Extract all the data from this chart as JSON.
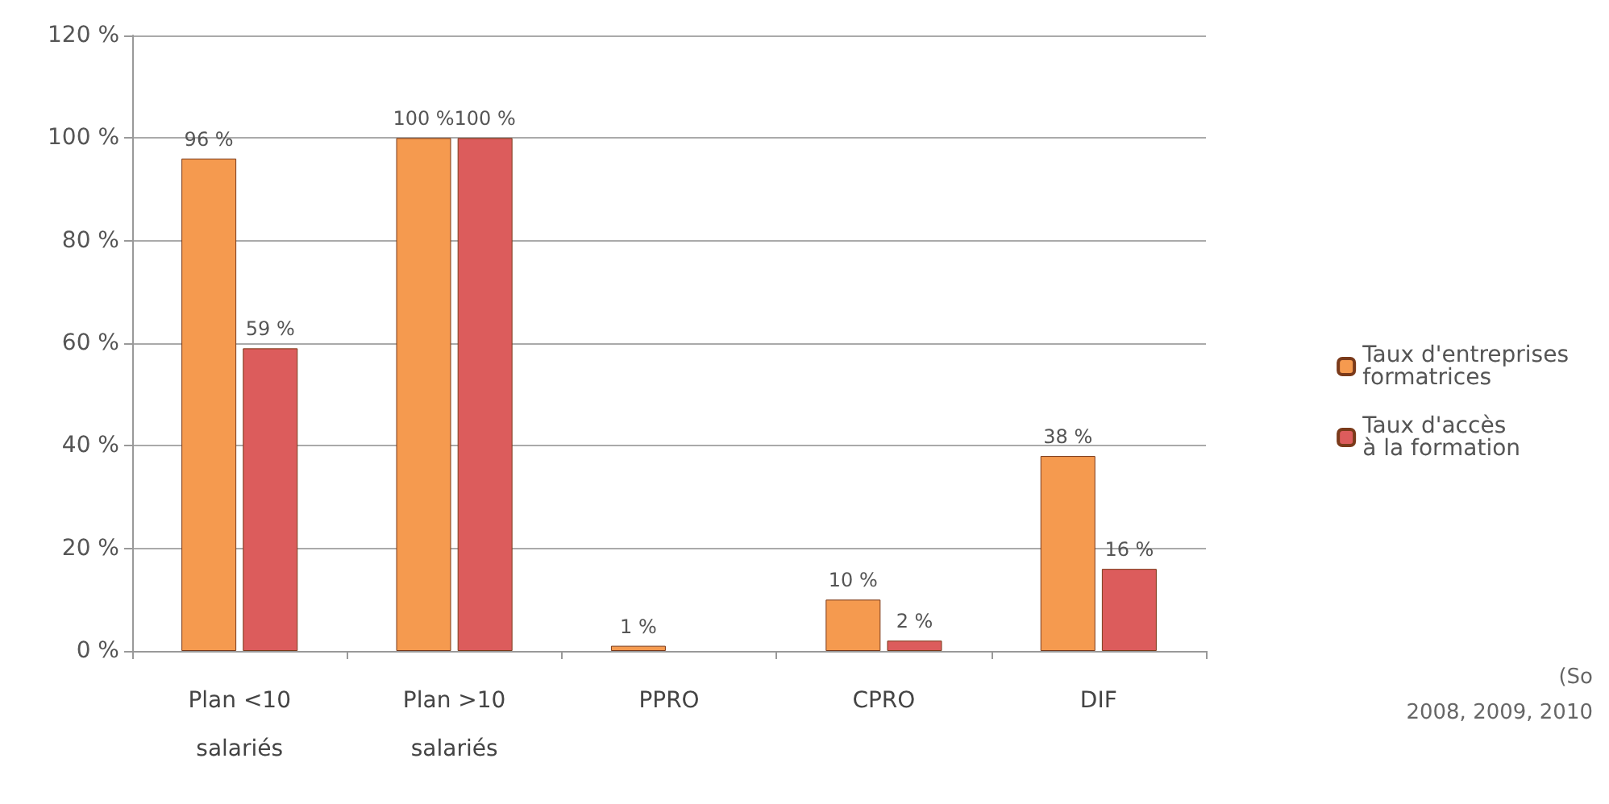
{
  "chart_data": {
    "type": "bar",
    "categories": [
      "Plan <10\nsalariés",
      "Plan >10\nsalariés",
      "PPRO",
      "CPRO",
      "DIF"
    ],
    "series": [
      {
        "name": "Taux d'entreprises\nformatrices",
        "color": "#f59a4f",
        "values": [
          96,
          100,
          1,
          10,
          38
        ],
        "value_labels": [
          "96 %",
          "100 %",
          "1 %",
          "10 %",
          "38 %"
        ]
      },
      {
        "name": "Taux d'accès\nà la formation",
        "color": "#dc5c5c",
        "values": [
          59,
          100,
          null,
          2,
          16
        ],
        "value_labels": [
          "59 %",
          "100 %",
          null,
          "2 %",
          "16 %"
        ]
      }
    ],
    "ylim": [
      0,
      120
    ],
    "yticks": [
      {
        "value": 0,
        "label": "0 %"
      },
      {
        "value": 20,
        "label": "20 %"
      },
      {
        "value": 40,
        "label": "40 %"
      },
      {
        "value": 60,
        "label": "60 %"
      },
      {
        "value": 80,
        "label": "80 %"
      },
      {
        "value": 100,
        "label": "100 %"
      },
      {
        "value": 120,
        "label": "120 %"
      }
    ],
    "grid": "y",
    "legend": "right",
    "annotations": [
      "(So",
      "2008, 2009, 2010"
    ]
  }
}
